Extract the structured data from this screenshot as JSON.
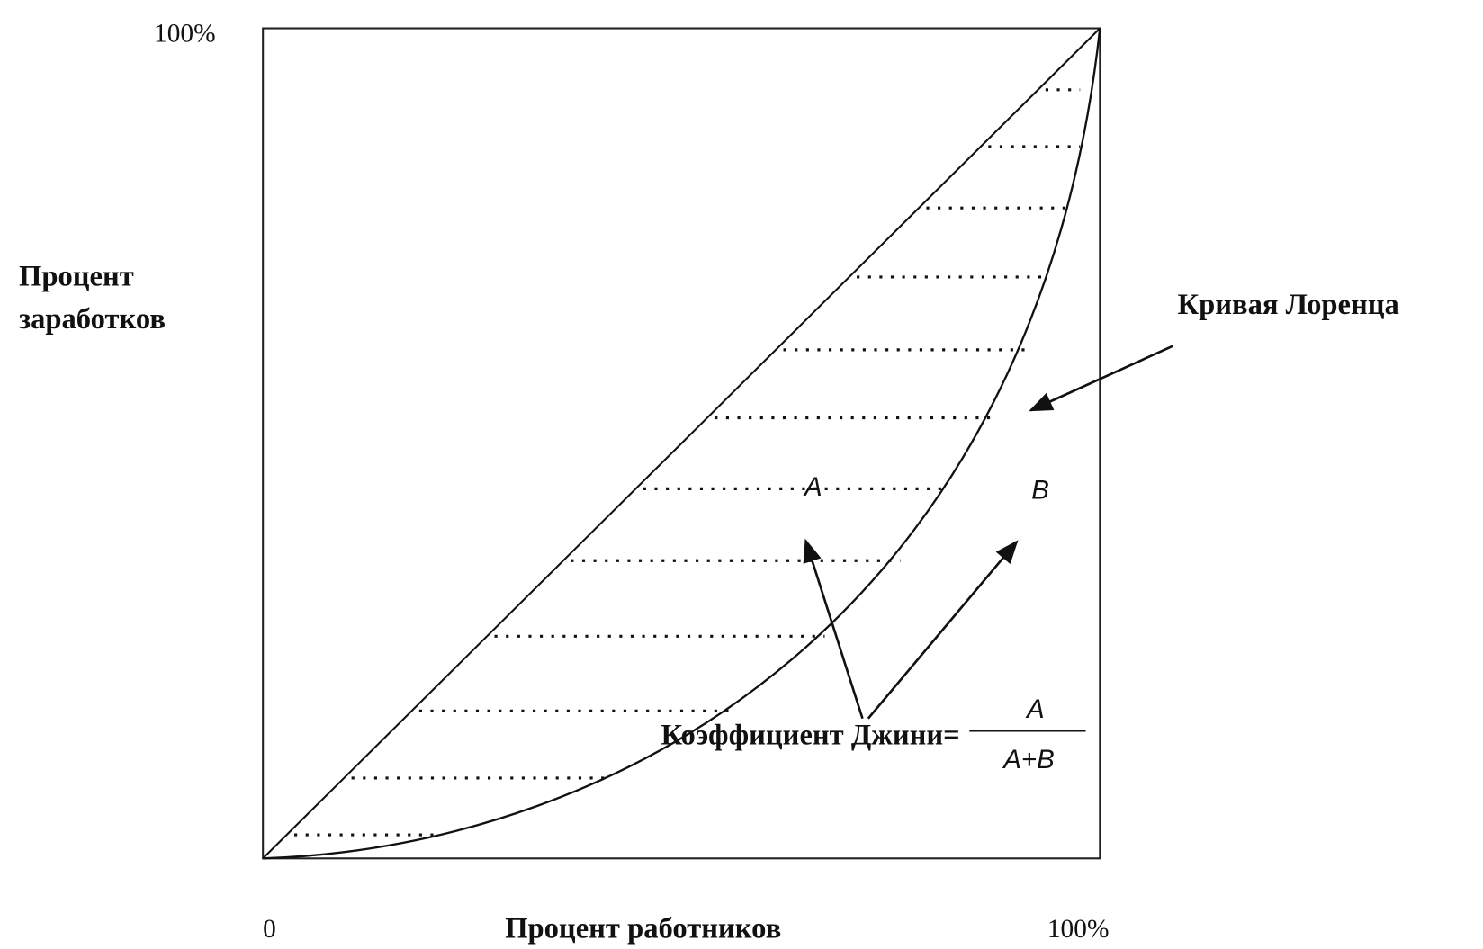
{
  "axes": {
    "y_max": "100%",
    "y_label": [
      "Процент",
      "заработков"
    ],
    "x_origin": "0",
    "x_label": "Процент работников",
    "x_max": "100%"
  },
  "labels": {
    "curve": "Кривая Лоренца",
    "area_a": "A",
    "area_b": "B",
    "gini": "Коэффициент Джини=",
    "fraction_numerator": "A",
    "fraction_denominator": "A+B"
  }
}
